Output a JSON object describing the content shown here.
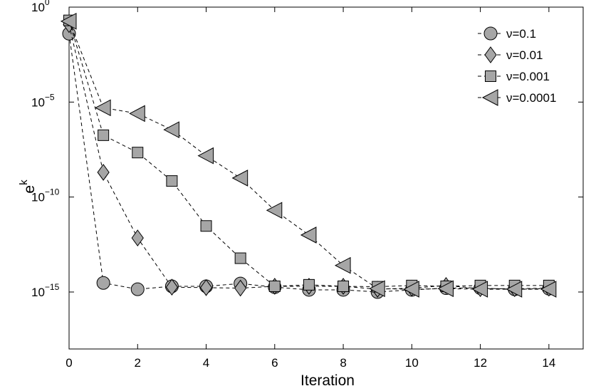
{
  "chart_data": {
    "type": "line",
    "title": "",
    "xlabel": "Iteration",
    "ylabel": {
      "base": "e",
      "sup": "k"
    },
    "xlim": [
      0,
      15
    ],
    "ylim": [
      1e-18,
      1
    ],
    "yscale": "log",
    "grid": false,
    "legend_position": "top-right",
    "x_ticks": [
      0,
      2,
      4,
      6,
      8,
      10,
      12,
      14
    ],
    "x_tick_labels": [
      "0",
      "2",
      "4",
      "6",
      "8",
      "10",
      "12",
      "14"
    ],
    "y_ticks": [
      {
        "value": 1,
        "base": "10",
        "exp": "0"
      },
      {
        "value": 1e-05,
        "base": "10",
        "exp": "−5"
      },
      {
        "value": 1e-10,
        "base": "10",
        "exp": "−10"
      },
      {
        "value": 1e-15,
        "base": "10",
        "exp": "−15"
      }
    ],
    "x": [
      0,
      1,
      2,
      3,
      4,
      5,
      6,
      7,
      8,
      9,
      10,
      11,
      12,
      13,
      14
    ],
    "line_style": "dashed",
    "marker_fill": "#a6a6a6",
    "marker_stroke": "#000000",
    "series": [
      {
        "name": "ν=0.1",
        "marker": "circle",
        "values": [
          0.04,
          3e-15,
          1.4e-15,
          2e-15,
          2e-15,
          2.8e-15,
          1.8e-15,
          1.3e-15,
          1.3e-15,
          1e-15,
          1.3e-15,
          1.6e-15,
          1.6e-15,
          1.4e-15,
          1.5e-15
        ]
      },
      {
        "name": "ν=0.01",
        "marker": "diamond",
        "values": [
          0.12,
          2e-09,
          7e-13,
          1.8e-15,
          1.7e-15,
          1.6e-15,
          2e-15,
          2e-15,
          2e-15,
          1.4e-15,
          1.6e-15,
          2.2e-15,
          1.5e-15,
          1.5e-15,
          1.6e-15
        ]
      },
      {
        "name": "ν=0.001",
        "marker": "square",
        "values": [
          0.2,
          1.8e-07,
          2.2e-08,
          7e-10,
          3e-12,
          6e-14,
          2e-15,
          2.4e-15,
          2e-15,
          1.9e-15,
          2.2e-15,
          2e-15,
          2.2e-15,
          2.2e-15,
          2.2e-15
        ]
      },
      {
        "name": "ν=0.0001",
        "marker": "triangle-left",
        "values": [
          0.18,
          5e-06,
          2.5e-06,
          3.5e-07,
          1.5e-08,
          1e-09,
          2e-11,
          1e-12,
          2.5e-14,
          1.5e-15,
          1.4e-15,
          1.5e-15,
          1.4e-15,
          1.4e-15,
          1.4e-15
        ]
      }
    ]
  }
}
